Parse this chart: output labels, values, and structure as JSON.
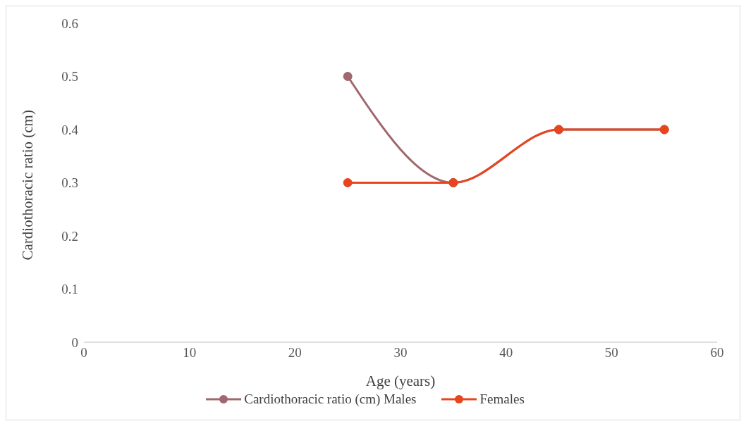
{
  "chart_data": {
    "type": "line",
    "xlabel": "Age (years)",
    "ylabel": "Cardiothoracic ratio (cm)",
    "x": [
      25,
      35,
      45,
      55
    ],
    "series": [
      {
        "name": "Cardiothoracic ratio (cm) Males",
        "color": "#a0686e",
        "values": [
          0.5,
          0.3,
          0.4,
          0.4
        ]
      },
      {
        "name": "Females",
        "color": "#e8451e",
        "values": [
          0.3,
          0.3,
          0.4,
          0.4
        ]
      }
    ],
    "xlim": [
      0,
      60
    ],
    "xticks": [
      0,
      10,
      20,
      30,
      40,
      50,
      60
    ],
    "ylim": [
      0,
      0.6
    ],
    "yticks": [
      0,
      0.1,
      0.2,
      0.3,
      0.4,
      0.5,
      0.6
    ],
    "grid": false,
    "legend": "bottom",
    "marker": "circle",
    "line_style": "solid"
  }
}
